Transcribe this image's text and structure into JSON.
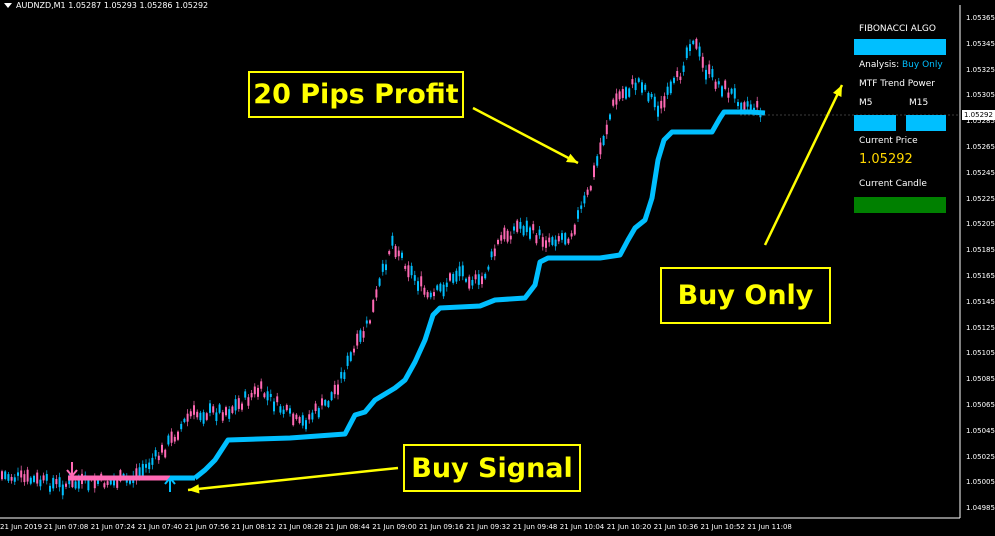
{
  "header": {
    "symbol_line": "AUDNZD,M1  1.05287 1.05293 1.05286 1.05292"
  },
  "panel": {
    "title": "FIBONACCI ALGO",
    "analysis_label": "Analysis:",
    "analysis_value": "Buy Only",
    "mtf_label": "MTF Trend Power",
    "tf1": "M5",
    "tf2": "M15",
    "current_price_label": "Current Price",
    "current_price_value": "1.05292",
    "current_candle_label": "Current Candle"
  },
  "callouts": {
    "profit": "20 Pips Profit",
    "buy_only": "Buy Only",
    "buy_signal": "Buy Signal"
  },
  "price_tag": "1.05292",
  "y_axis": [
    "1.05365",
    "1.05345",
    "1.05325",
    "1.05305",
    "1.05285",
    "1.05265",
    "1.05245",
    "1.05225",
    "1.05205",
    "1.05185",
    "1.05165",
    "1.05145",
    "1.05125",
    "1.05105",
    "1.05085",
    "1.05065",
    "1.05045",
    "1.05025",
    "1.05005",
    "1.04985"
  ],
  "x_axis": [
    "21 Jun 2019",
    "21 Jun 07:08",
    "21 Jun 07:24",
    "21 Jun 07:40",
    "21 Jun 07:56",
    "21 Jun 08:12",
    "21 Jun 08:28",
    "21 Jun 08:44",
    "21 Jun 09:00",
    "21 Jun 09:16",
    "21 Jun 09:32",
    "21 Jun 09:48",
    "21 Jun 10:04",
    "21 Jun 10:20",
    "21 Jun 10:36",
    "21 Jun 10:52",
    "21 Jun 11:08"
  ],
  "colors": {
    "trend_line": "#00bfff",
    "trend_line_pre": "#ff69b4",
    "bull_candle": "#00bfff",
    "bear_candle": "#ff69b4",
    "callout": "#ffff00",
    "candle_status": "#008000",
    "price_text": "#ffd700"
  }
}
